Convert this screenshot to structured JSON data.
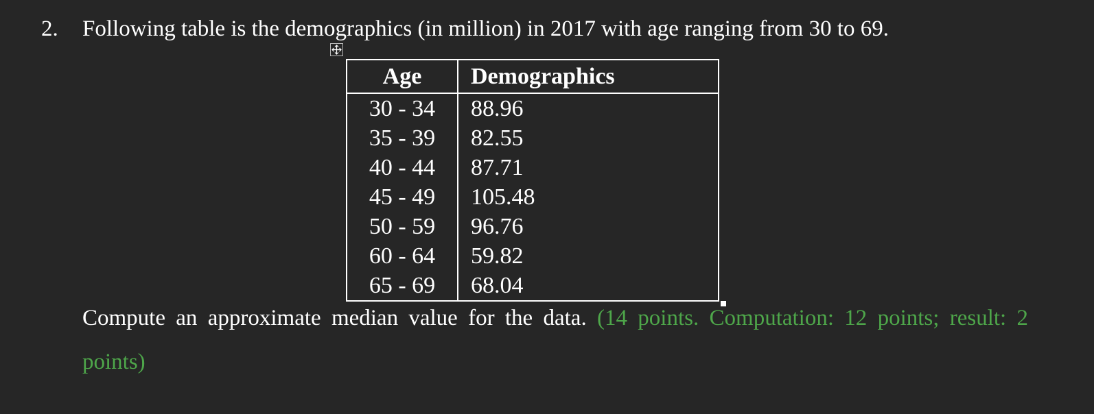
{
  "item_number": "2.",
  "question": "Following table is the demographics (in million) in 2017 with age ranging from 30 to 69.",
  "table": {
    "header": [
      "Age",
      "Demographics"
    ],
    "rows": [
      [
        "30 - 34",
        "88.96"
      ],
      [
        "35 - 39",
        "82.55"
      ],
      [
        "40 - 44",
        "87.71"
      ],
      [
        "45 - 49",
        "105.48"
      ],
      [
        "50 - 59",
        "96.76"
      ],
      [
        "60 - 64",
        "59.82"
      ],
      [
        "65 - 69",
        "68.04"
      ]
    ]
  },
  "instruction": "Compute an approximate median value for the data.",
  "points_note": "(14 points. Computation: 12 points; result: 2 points)"
}
